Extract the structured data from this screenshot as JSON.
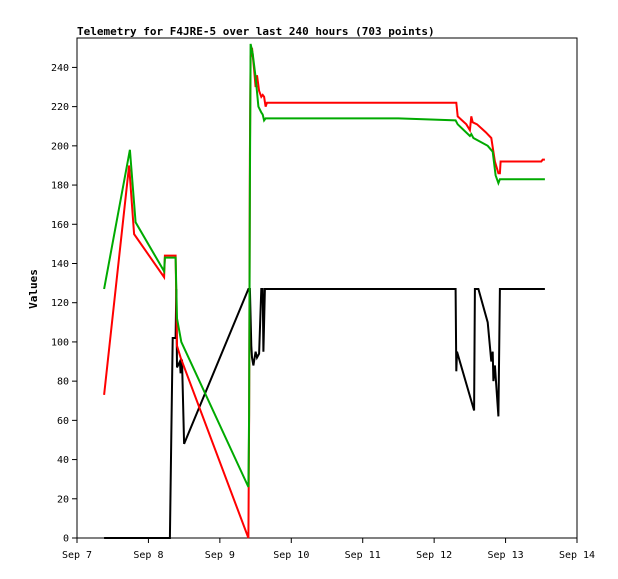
{
  "chart_data": {
    "type": "line",
    "title": "Telemetry for F4JRE-5 over last 240 hours (703 points)",
    "xlabel": "",
    "ylabel": "Values",
    "xlim": [
      7.0,
      14.0
    ],
    "ylim": [
      0,
      255
    ],
    "x_ticks": [
      {
        "value": 7,
        "label": "Sep 7"
      },
      {
        "value": 8,
        "label": "Sep 8"
      },
      {
        "value": 9,
        "label": "Sep 9"
      },
      {
        "value": 10,
        "label": "Sep 10"
      },
      {
        "value": 11,
        "label": "Sep 11"
      },
      {
        "value": 12,
        "label": "Sep 12"
      },
      {
        "value": 13,
        "label": "Sep 13"
      },
      {
        "value": 14,
        "label": "Sep 14"
      }
    ],
    "y_ticks": [
      0,
      20,
      40,
      60,
      80,
      100,
      120,
      140,
      160,
      180,
      200,
      220,
      240
    ],
    "grid": false,
    "series": [
      {
        "color": "#000000",
        "points": [
          [
            7.38,
            0
          ],
          [
            8.3,
            0
          ],
          [
            8.32,
            52
          ],
          [
            8.34,
            102
          ],
          [
            8.38,
            102
          ],
          [
            8.39,
            127
          ],
          [
            8.4,
            87
          ],
          [
            8.44,
            90
          ],
          [
            8.45,
            84
          ],
          [
            8.47,
            91
          ],
          [
            8.5,
            48
          ],
          [
            9.4,
            127
          ],
          [
            9.42,
            127
          ],
          [
            9.44,
            98
          ],
          [
            9.45,
            92
          ],
          [
            9.47,
            88
          ],
          [
            9.5,
            95
          ],
          [
            9.52,
            92
          ],
          [
            9.55,
            94
          ],
          [
            9.58,
            127
          ],
          [
            9.6,
            127
          ],
          [
            9.61,
            95
          ],
          [
            9.63,
            127
          ],
          [
            12.3,
            127
          ],
          [
            12.31,
            85
          ],
          [
            12.32,
            95
          ],
          [
            12.56,
            65
          ],
          [
            12.57,
            127
          ],
          [
            12.6,
            127
          ],
          [
            12.62,
            127
          ],
          [
            12.75,
            110
          ],
          [
            12.8,
            90
          ],
          [
            12.82,
            95
          ],
          [
            12.83,
            80
          ],
          [
            12.85,
            88
          ],
          [
            12.9,
            62
          ],
          [
            12.92,
            127
          ],
          [
            13.55,
            127
          ]
        ]
      },
      {
        "color": "#ff0000",
        "points": [
          [
            7.38,
            73
          ],
          [
            7.73,
            190
          ],
          [
            7.8,
            155
          ],
          [
            8.22,
            133
          ],
          [
            8.23,
            144
          ],
          [
            8.38,
            144
          ],
          [
            8.4,
            98
          ],
          [
            8.45,
            92
          ],
          [
            9.4,
            0
          ],
          [
            9.41,
            60
          ],
          [
            9.42,
            195
          ],
          [
            9.43,
            245
          ],
          [
            9.45,
            250
          ],
          [
            9.48,
            239
          ],
          [
            9.5,
            230
          ],
          [
            9.52,
            236
          ],
          [
            9.55,
            228
          ],
          [
            9.58,
            225
          ],
          [
            9.6,
            226
          ],
          [
            9.62,
            225
          ],
          [
            9.64,
            220
          ],
          [
            9.66,
            222
          ],
          [
            12.31,
            222
          ],
          [
            12.33,
            215
          ],
          [
            12.45,
            211
          ],
          [
            12.5,
            208
          ],
          [
            12.52,
            215
          ],
          [
            12.54,
            212
          ],
          [
            12.6,
            211
          ],
          [
            12.72,
            207
          ],
          [
            12.8,
            204
          ],
          [
            12.85,
            192
          ],
          [
            12.9,
            186
          ],
          [
            12.92,
            186
          ],
          [
            12.93,
            192
          ],
          [
            13.5,
            192
          ],
          [
            13.52,
            193
          ],
          [
            13.55,
            193
          ]
        ]
      },
      {
        "color": "#00aa00",
        "points": [
          [
            7.38,
            127
          ],
          [
            7.74,
            198
          ],
          [
            7.82,
            161
          ],
          [
            8.22,
            136
          ],
          [
            8.23,
            143
          ],
          [
            8.38,
            143
          ],
          [
            8.4,
            112
          ],
          [
            8.46,
            100
          ],
          [
            9.4,
            26
          ],
          [
            9.41,
            63
          ],
          [
            9.42,
            180
          ],
          [
            9.43,
            252
          ],
          [
            9.46,
            247
          ],
          [
            9.5,
            235
          ],
          [
            9.54,
            220
          ],
          [
            9.58,
            217
          ],
          [
            9.6,
            216
          ],
          [
            9.62,
            213
          ],
          [
            9.64,
            214
          ],
          [
            11.5,
            214
          ],
          [
            12.3,
            213
          ],
          [
            12.33,
            211
          ],
          [
            12.5,
            205
          ],
          [
            12.52,
            206
          ],
          [
            12.55,
            204
          ],
          [
            12.75,
            200
          ],
          [
            12.82,
            197
          ],
          [
            12.86,
            185
          ],
          [
            12.9,
            181
          ],
          [
            12.92,
            183
          ],
          [
            13.55,
            183
          ]
        ]
      }
    ]
  }
}
